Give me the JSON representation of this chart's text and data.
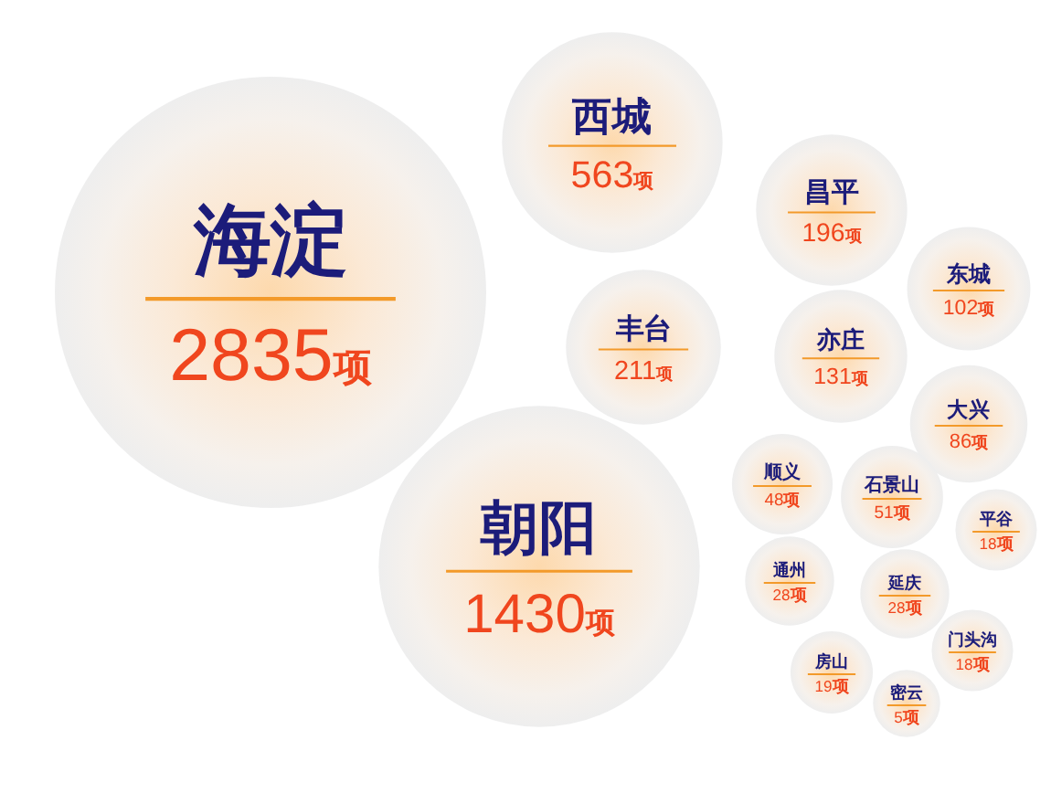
{
  "chart_data": {
    "type": "other",
    "categories": [
      "海淀",
      "西城",
      "昌平",
      "东城",
      "丰台",
      "亦庄",
      "大兴",
      "朝阳",
      "顺义",
      "石景山",
      "平谷",
      "通州",
      "延庆",
      "房山",
      "密云",
      "门头沟"
    ],
    "values": [
      2835,
      563,
      196,
      102,
      211,
      131,
      86,
      1430,
      48,
      51,
      18,
      28,
      28,
      19,
      5,
      18
    ],
    "value_labels": [
      "2835项",
      "563项",
      "196项",
      "102项",
      "211项",
      "131项",
      "86项",
      "1430项",
      "48项",
      "51项",
      "18项",
      "28项",
      "28项",
      "19项",
      "5项",
      "18项"
    ],
    "color": "#f0461e"
  }
}
